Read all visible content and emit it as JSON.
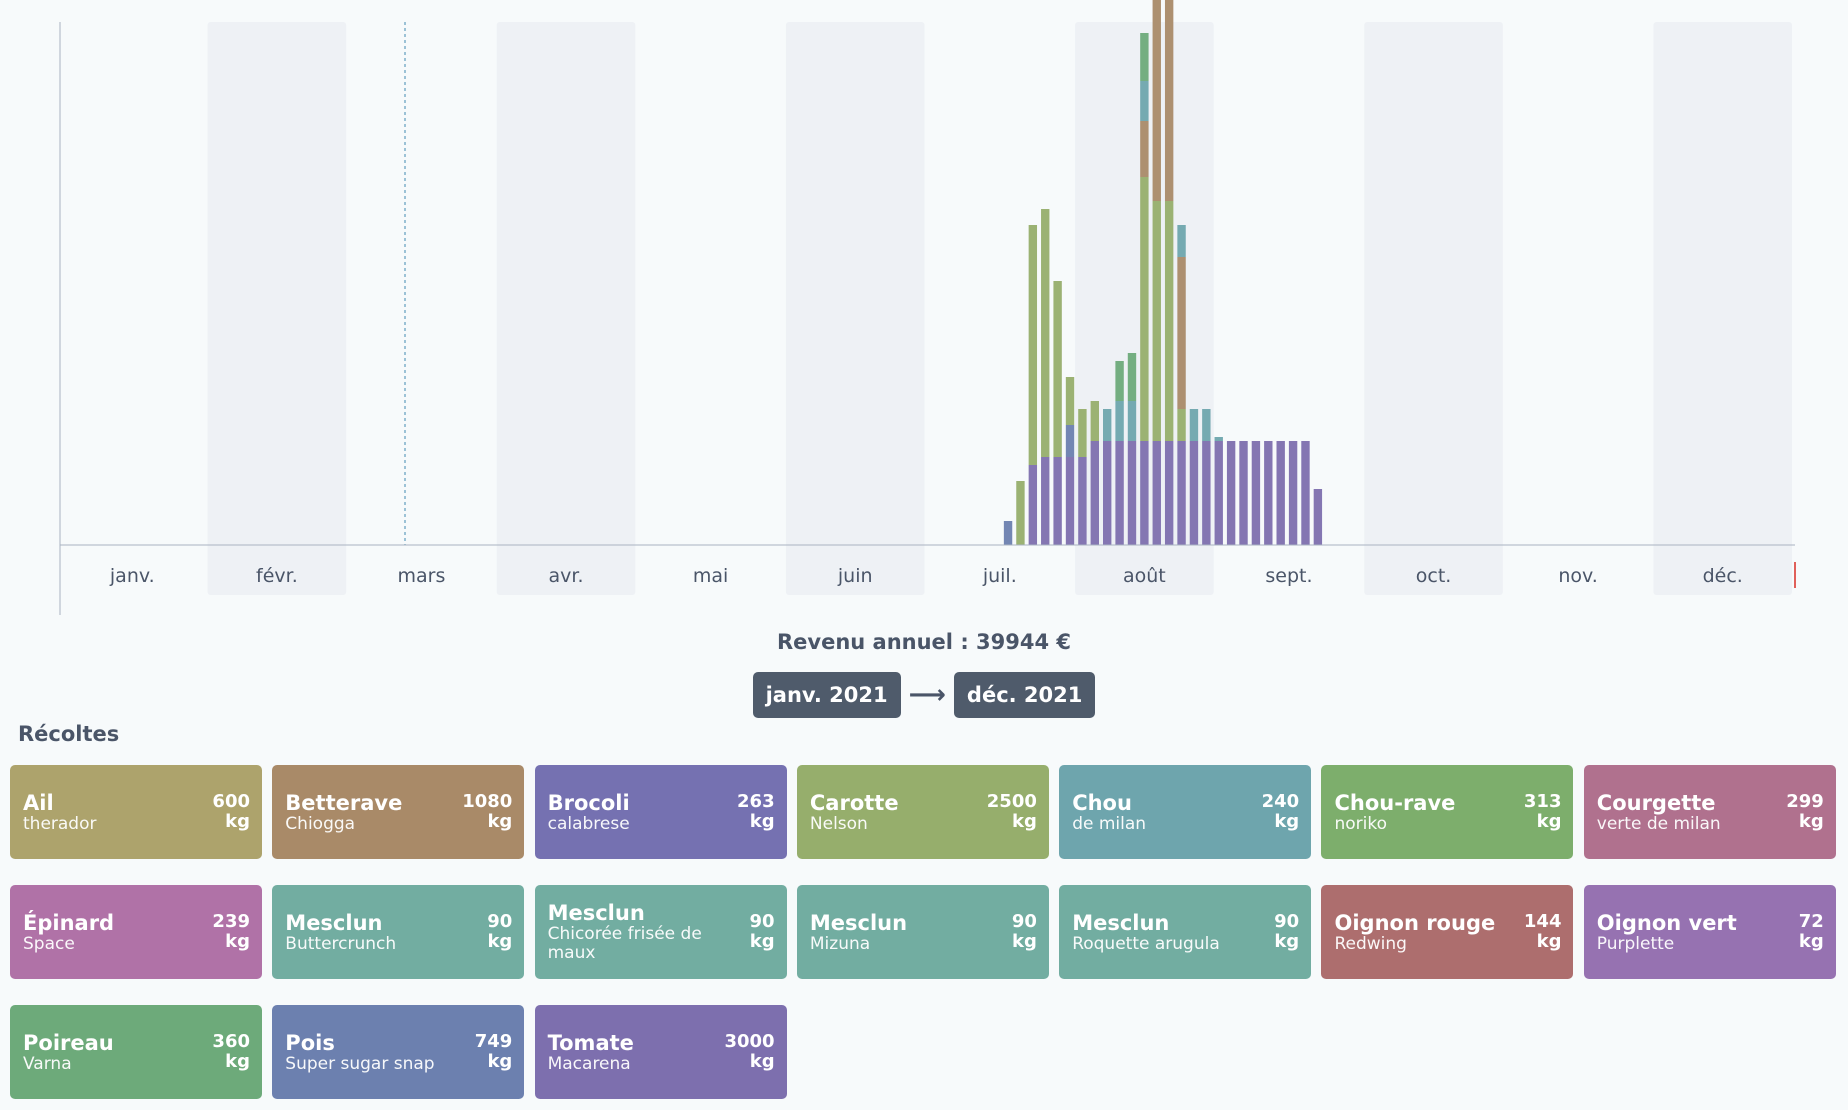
{
  "chart_data": {
    "type": "bar",
    "stacked": true,
    "months": [
      "janv.",
      "févr.",
      "mars",
      "avr.",
      "mai",
      "juin",
      "juil.",
      "août",
      "sept.",
      "oct.",
      "nov.",
      "déc."
    ],
    "grid": false,
    "series": [
      {
        "name": "Tomate",
        "color": "#7d6fae",
        "values": [
          0,
          0,
          0,
          0,
          0,
          0,
          0,
          0,
          0,
          0,
          0,
          0,
          0,
          0,
          0,
          0,
          0,
          0,
          0,
          0,
          0,
          0,
          0,
          0,
          0,
          0,
          0,
          0,
          0,
          0,
          0,
          0,
          0,
          0,
          0,
          0,
          0,
          0,
          0,
          0,
          0,
          0,
          0,
          0,
          0,
          0,
          0,
          0,
          0,
          0,
          0,
          0,
          0,
          0,
          0,
          0,
          0,
          0,
          0,
          0,
          0,
          0,
          0,
          0,
          0,
          0,
          0,
          0,
          0,
          0,
          0,
          0,
          0,
          0,
          0,
          0,
          0,
          0,
          1.0,
          1.1,
          1.1,
          1.1,
          1.1,
          1.3,
          1.3,
          1.3,
          1.3,
          1.3,
          1.3,
          1.3,
          1.3,
          1.3,
          1.3,
          1.3,
          1.3,
          1.3,
          1.3,
          1.3,
          1.3,
          1.3,
          1.3,
          0.7,
          0,
          0,
          0,
          0,
          0,
          0,
          0,
          0,
          0,
          0,
          0,
          0,
          0,
          0,
          0,
          0,
          0,
          0,
          0,
          0,
          0,
          0,
          0,
          0,
          0,
          0,
          0,
          0,
          0,
          0,
          0,
          0,
          0,
          0,
          0,
          0,
          0,
          0
        ]
      },
      {
        "name": "Pois",
        "color": "#6c80af",
        "values": [
          0,
          0,
          0,
          0,
          0,
          0,
          0,
          0,
          0,
          0,
          0,
          0,
          0,
          0,
          0,
          0,
          0,
          0,
          0,
          0,
          0,
          0,
          0,
          0,
          0,
          0,
          0,
          0,
          0,
          0,
          0,
          0,
          0,
          0,
          0,
          0,
          0,
          0,
          0,
          0,
          0,
          0,
          0,
          0,
          0,
          0,
          0,
          0,
          0,
          0,
          0,
          0,
          0,
          0,
          0,
          0,
          0,
          0,
          0,
          0,
          0,
          0,
          0,
          0,
          0,
          0,
          0,
          0,
          0,
          0,
          0,
          0,
          0,
          0,
          0,
          0,
          0.3,
          0,
          0,
          0,
          0,
          0.4,
          0,
          0,
          0,
          0,
          0,
          0,
          0,
          0,
          0,
          0,
          0,
          0,
          0,
          0,
          0,
          0,
          0,
          0,
          0,
          0,
          0,
          0,
          0,
          0,
          0,
          0,
          0,
          0,
          0,
          0,
          0,
          0,
          0,
          0,
          0,
          0,
          0,
          0,
          0,
          0,
          0,
          0,
          0,
          0,
          0,
          0,
          0,
          0,
          0,
          0,
          0,
          0,
          0,
          0,
          0,
          0,
          0,
          0,
          0,
          0
        ]
      },
      {
        "name": "Carotte",
        "color": "#96ae6c",
        "values": [
          0,
          0,
          0,
          0,
          0,
          0,
          0,
          0,
          0,
          0,
          0,
          0,
          0,
          0,
          0,
          0,
          0,
          0,
          0,
          0,
          0,
          0,
          0,
          0,
          0,
          0,
          0,
          0,
          0,
          0,
          0,
          0,
          0,
          0,
          0,
          0,
          0,
          0,
          0,
          0,
          0,
          0,
          0,
          0,
          0,
          0,
          0,
          0,
          0,
          0,
          0,
          0,
          0,
          0,
          0,
          0,
          0,
          0,
          0,
          0,
          0,
          0,
          0,
          0,
          0,
          0,
          0,
          0,
          0,
          0,
          0,
          0,
          0,
          0,
          0,
          0,
          0,
          0.8,
          3.0,
          3.1,
          2.2,
          0.6,
          0.6,
          0.5,
          0,
          0,
          0,
          3.3,
          3.0,
          3.0,
          0.4,
          0,
          0,
          0,
          0,
          0,
          0,
          0,
          0,
          0,
          0,
          0,
          0,
          0,
          0,
          0,
          0,
          0,
          0,
          0,
          0,
          0,
          0,
          0,
          0,
          0,
          0,
          0,
          0,
          0,
          0,
          0,
          0,
          0,
          0,
          0,
          0,
          0,
          0,
          0,
          0,
          0,
          0,
          0,
          0,
          0,
          0,
          0
        ]
      },
      {
        "name": "Betterave",
        "color": "#a98a68",
        "values": [
          0,
          0,
          0,
          0,
          0,
          0,
          0,
          0,
          0,
          0,
          0,
          0,
          0,
          0,
          0,
          0,
          0,
          0,
          0,
          0,
          0,
          0,
          0,
          0,
          0,
          0,
          0,
          0,
          0,
          0,
          0,
          0,
          0,
          0,
          0,
          0,
          0,
          0,
          0,
          0,
          0,
          0,
          0,
          0,
          0,
          0,
          0,
          0,
          0,
          0,
          0,
          0,
          0,
          0,
          0,
          0,
          0,
          0,
          0,
          0,
          0,
          0,
          0,
          0,
          0,
          0,
          0,
          0,
          0,
          0,
          0,
          0,
          0,
          0,
          0,
          0,
          0,
          0,
          0,
          0,
          0,
          0,
          0,
          0,
          0,
          0,
          0,
          0.7,
          2.6,
          2.6,
          1.9,
          0,
          0,
          0,
          0,
          0,
          0,
          0,
          0,
          0,
          0,
          0,
          0,
          0,
          0,
          0,
          0,
          0,
          0,
          0,
          0,
          0,
          0,
          0,
          0,
          0,
          0,
          0,
          0,
          0,
          0,
          0,
          0,
          0,
          0,
          0,
          0,
          0,
          0,
          0,
          0,
          0,
          0,
          0,
          0,
          0,
          0,
          0
        ]
      },
      {
        "name": "Chou",
        "color": "#6ea5ad",
        "values": [
          0,
          0,
          0,
          0,
          0,
          0,
          0,
          0,
          0,
          0,
          0,
          0,
          0,
          0,
          0,
          0,
          0,
          0,
          0,
          0,
          0,
          0,
          0,
          0,
          0,
          0,
          0,
          0,
          0,
          0,
          0,
          0,
          0,
          0,
          0,
          0,
          0,
          0,
          0,
          0,
          0,
          0,
          0,
          0,
          0,
          0,
          0,
          0,
          0,
          0,
          0,
          0,
          0,
          0,
          0,
          0,
          0,
          0,
          0,
          0,
          0,
          0,
          0,
          0,
          0,
          0,
          0,
          0,
          0,
          0,
          0,
          0,
          0,
          0,
          0,
          0,
          0,
          0,
          0,
          0,
          0,
          0,
          0,
          0,
          0.4,
          0.5,
          0.5,
          0.5,
          0.4,
          0.6,
          0.4,
          0.4,
          0.4,
          0.05,
          0,
          0,
          0,
          0,
          0,
          0,
          0,
          0,
          0,
          0,
          0,
          0,
          0,
          0,
          0,
          0,
          0,
          0,
          0,
          0,
          0,
          0,
          0,
          0,
          0,
          0,
          0,
          0,
          0,
          0,
          0,
          0,
          0,
          0,
          0,
          0,
          0,
          0,
          0,
          0,
          0,
          0,
          0,
          0,
          0,
          0
        ]
      },
      {
        "name": "Poireau",
        "color": "#6daa7a",
        "values": [
          0,
          0,
          0,
          0,
          0,
          0,
          0,
          0,
          0,
          0,
          0,
          0,
          0,
          0,
          0,
          0,
          0,
          0,
          0,
          0,
          0,
          0,
          0,
          0,
          0,
          0,
          0,
          0,
          0,
          0,
          0,
          0,
          0,
          0,
          0,
          0,
          0,
          0,
          0,
          0,
          0,
          0,
          0,
          0,
          0,
          0,
          0,
          0,
          0,
          0,
          0,
          0,
          0,
          0,
          0,
          0,
          0,
          0,
          0,
          0,
          0,
          0,
          0,
          0,
          0,
          0,
          0,
          0,
          0,
          0,
          0,
          0,
          0,
          0,
          0,
          0,
          0,
          0,
          0,
          0,
          0,
          0,
          0,
          0,
          0,
          0.5,
          0.6,
          0.6,
          0.6,
          0.6,
          0,
          0,
          0,
          0,
          0,
          0,
          0,
          0,
          0,
          0,
          0,
          0,
          0,
          0,
          0,
          0,
          0,
          0,
          0,
          0,
          0,
          0,
          0,
          0,
          0,
          0,
          0,
          0,
          0,
          0,
          0,
          0,
          0,
          0,
          0,
          0,
          0,
          0,
          0,
          0,
          0,
          0,
          0,
          0,
          0,
          0,
          0
        ]
      }
    ]
  },
  "revenue": {
    "label": "Revenu annuel : ",
    "value": "39944 €"
  },
  "range": {
    "start": "janv. 2021",
    "end": "déc. 2021"
  },
  "harvests_title": "Récoltes",
  "crops": [
    {
      "name": "Ail",
      "variety": "therador",
      "qty": "600",
      "unit": "kg",
      "color": "#ada36c"
    },
    {
      "name": "Betterave",
      "variety": "Chiogga",
      "qty": "1080",
      "unit": "kg",
      "color": "#a98a68"
    },
    {
      "name": "Brocoli",
      "variety": "calabrese",
      "qty": "263",
      "unit": "kg",
      "color": "#7571b1"
    },
    {
      "name": "Carotte",
      "variety": "Nelson",
      "qty": "2500",
      "unit": "kg",
      "color": "#96ae6c"
    },
    {
      "name": "Chou",
      "variety": "de milan",
      "qty": "240",
      "unit": "kg",
      "color": "#6ea5ad"
    },
    {
      "name": "Chou-rave",
      "variety": "noriko",
      "qty": "313",
      "unit": "kg",
      "color": "#7dae6c"
    },
    {
      "name": "Courgette",
      "variety": "verte de milan",
      "qty": "299",
      "unit": "kg",
      "color": "#b0718e"
    },
    {
      "name": "Épinard",
      "variety": "Space",
      "qty": "239",
      "unit": "kg",
      "color": "#b072a7"
    },
    {
      "name": "Mesclun",
      "variety": "Buttercrunch",
      "qty": "90",
      "unit": "kg",
      "color": "#72ada1"
    },
    {
      "name": "Mesclun",
      "variety": "Chicorée frisée de maux",
      "qty": "90",
      "unit": "kg",
      "color": "#72ada1"
    },
    {
      "name": "Mesclun",
      "variety": "Mizuna",
      "qty": "90",
      "unit": "kg",
      "color": "#72ada1"
    },
    {
      "name": "Mesclun",
      "variety": "Roquette arugula",
      "qty": "90",
      "unit": "kg",
      "color": "#72ada1"
    },
    {
      "name": "Oignon rouge",
      "variety": "Redwing",
      "qty": "144",
      "unit": "kg",
      "color": "#ad6e6e"
    },
    {
      "name": "Oignon vert",
      "variety": "Purplette",
      "qty": "72",
      "unit": "kg",
      "color": "#9672b1"
    },
    {
      "name": "Poireau",
      "variety": "Varna",
      "qty": "360",
      "unit": "kg",
      "color": "#6daa7a"
    },
    {
      "name": "Pois",
      "variety": "Super sugar snap",
      "qty": "749",
      "unit": "kg",
      "color": "#6c80af"
    },
    {
      "name": "Tomate",
      "variety": "Macarena",
      "qty": "3000",
      "unit": "kg",
      "color": "#7d6fae"
    }
  ]
}
